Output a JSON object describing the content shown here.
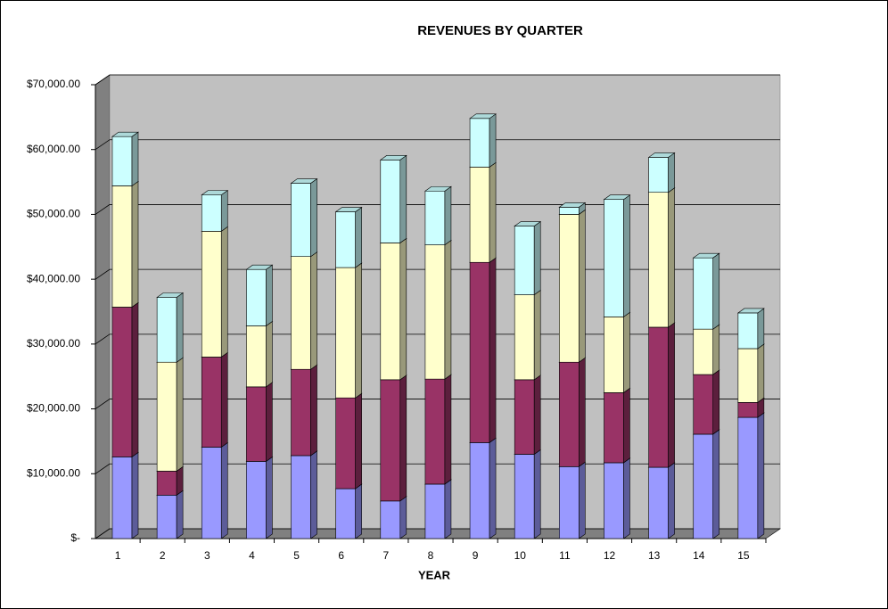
{
  "chart_data": {
    "type": "bar3d_stacked",
    "title": "REVENUES BY QUARTER",
    "x_label": "YEAR",
    "categories": [
      "1",
      "2",
      "3",
      "4",
      "5",
      "6",
      "7",
      "8",
      "9",
      "10",
      "11",
      "12",
      "13",
      "14",
      "15"
    ],
    "series": [
      {
        "color": "#9999ff",
        "values": [
          12600,
          6700,
          14100,
          11900,
          12800,
          7700,
          5800,
          8400,
          14800,
          13000,
          11100,
          11700,
          11000,
          16100,
          18700
        ]
      },
      {
        "color": "#993366",
        "values": [
          23100,
          3700,
          13900,
          11500,
          13300,
          14000,
          18700,
          16200,
          27800,
          11500,
          16100,
          10800,
          21600,
          9200,
          2300
        ]
      },
      {
        "color": "#ffffcc",
        "values": [
          18700,
          16800,
          19400,
          9400,
          17400,
          20100,
          21100,
          20700,
          14700,
          13100,
          22800,
          11700,
          20800,
          7000,
          8300
        ]
      },
      {
        "color": "#ccffff",
        "values": [
          7600,
          10000,
          5600,
          8700,
          11300,
          8600,
          12800,
          8300,
          7500,
          10600,
          1100,
          18100,
          5400,
          11000,
          5500
        ]
      }
    ],
    "ylim": [
      0,
      70000
    ],
    "yticks": [
      {
        "value": 0,
        "label": "$-"
      },
      {
        "value": 10000,
        "label": "$10,000.00"
      },
      {
        "value": 20000,
        "label": "$20,000.00"
      },
      {
        "value": 30000,
        "label": "$30,000.00"
      },
      {
        "value": 40000,
        "label": "$40,000.00"
      },
      {
        "value": 50000,
        "label": "$50,000.00"
      },
      {
        "value": 60000,
        "label": "$60,000.00"
      },
      {
        "value": 70000,
        "label": "$70,000.00"
      }
    ],
    "grid": true
  }
}
